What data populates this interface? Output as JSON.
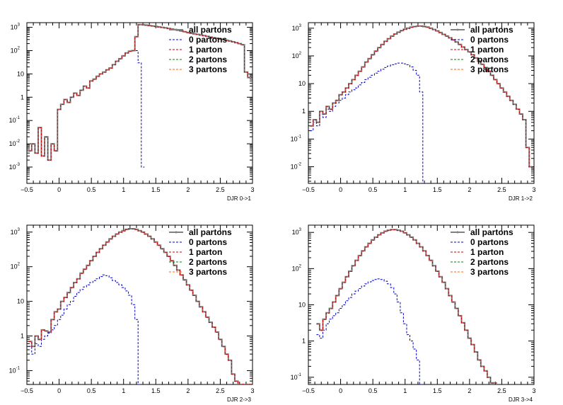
{
  "chart_data": [
    {
      "type": "line",
      "xlabel": "DJR 0->1",
      "xlim": [
        -0.5,
        3
      ],
      "ylim_log10": [
        -3.7,
        3.2
      ],
      "yscale": "log",
      "xticks": [
        "−0.5",
        "0",
        "0.5",
        "1",
        "1.5",
        "2",
        "2.5",
        "3"
      ],
      "yticks": [
        {
          "mant": "10",
          "exp": "-3",
          "log": -3
        },
        {
          "mant": "10",
          "exp": "-2",
          "log": -2
        },
        {
          "mant": "10",
          "exp": "-1",
          "log": -1
        },
        {
          "mant": "1",
          "exp": "",
          "log": 0
        },
        {
          "mant": "10",
          "exp": "",
          "log": 1
        },
        {
          "mant": "10",
          "exp": "2",
          "log": 2
        },
        {
          "mant": "10",
          "exp": "3",
          "log": 3
        }
      ],
      "legend": [
        "all partons",
        "0 partons",
        "1 parton",
        "2 partons",
        "3 partons"
      ],
      "colors": [
        "#808080",
        "#0000cc",
        "#cc0000",
        "#008000",
        "#ff6600"
      ],
      "series": [
        {
          "name": "all partons",
          "color": "#808080",
          "x": [
            -0.45,
            -0.4,
            -0.35,
            -0.3,
            -0.25,
            -0.2,
            -0.15,
            -0.1,
            -0.05,
            0.0,
            0.05,
            0.1,
            0.15,
            0.2,
            0.25,
            0.3,
            0.35,
            0.4,
            0.45,
            0.5,
            0.55,
            0.6,
            0.65,
            0.7,
            0.75,
            0.8,
            0.85,
            0.9,
            0.95,
            1.0,
            1.05,
            1.1,
            1.15,
            1.2,
            1.25,
            1.3,
            1.35,
            1.4,
            1.45,
            1.5,
            1.55,
            1.6,
            1.65,
            1.7,
            1.75,
            1.8,
            1.85,
            1.9,
            1.95,
            2.0,
            2.05,
            2.1,
            2.15,
            2.2,
            2.25,
            2.3,
            2.35,
            2.4,
            2.45,
            2.5,
            2.55,
            2.6,
            2.65,
            2.7,
            2.75,
            2.8,
            2.85,
            2.9,
            2.95
          ],
          "y": [
            0.005,
            0.01,
            0.004,
            0.05,
            0.003,
            0.02,
            0.002,
            0.01,
            0.005,
            0.3,
            0.5,
            0.8,
            0.6,
            1.0,
            1.5,
            1.2,
            2,
            3,
            2.5,
            5,
            6,
            8,
            10,
            12,
            15,
            18,
            25,
            35,
            45,
            60,
            80,
            95,
            100,
            400,
            1300,
            1300,
            1250,
            1200,
            1150,
            1100,
            1050,
            1000,
            950,
            900,
            850,
            800,
            750,
            700,
            650,
            600,
            560,
            530,
            500,
            470,
            440,
            410,
            380,
            360,
            340,
            320,
            300,
            280,
            260,
            240,
            220,
            200,
            180,
            12,
            7
          ]
        },
        {
          "name": "0 partons",
          "color": "#0000cc",
          "x": [
            -0.45,
            -0.4,
            -0.35,
            -0.3,
            -0.25,
            -0.2,
            -0.15,
            -0.1,
            -0.05,
            0.0,
            0.05,
            0.1,
            0.15,
            0.2,
            0.25,
            0.3,
            0.35,
            0.4,
            0.45,
            0.5,
            0.55,
            0.6,
            0.65,
            0.7,
            0.75,
            0.8,
            0.85,
            0.9,
            0.95,
            1.0,
            1.05,
            1.1,
            1.15,
            1.2,
            1.25,
            1.3
          ],
          "y": [
            0.005,
            0.01,
            0.004,
            0.05,
            0.003,
            0.02,
            0.002,
            0.01,
            0.005,
            0.3,
            0.5,
            0.8,
            0.6,
            1.0,
            1.5,
            1.2,
            2,
            3,
            2.5,
            5,
            6,
            8,
            10,
            12,
            15,
            18,
            25,
            35,
            45,
            60,
            80,
            95,
            100,
            100,
            30,
            0.001
          ]
        }
      ]
    },
    {
      "type": "line",
      "xlabel": "DJR 1->2",
      "xlim": [
        -0.5,
        3
      ],
      "ylim_log10": [
        -2.6,
        3.2
      ],
      "yscale": "log",
      "xticks": [
        "−0.5",
        "0",
        "0.5",
        "1",
        "1.5",
        "2",
        "2.5",
        "3"
      ],
      "yticks": [
        {
          "mant": "10",
          "exp": "-2",
          "log": -2
        },
        {
          "mant": "10",
          "exp": "-1",
          "log": -1
        },
        {
          "mant": "1",
          "exp": "",
          "log": 0
        },
        {
          "mant": "10",
          "exp": "",
          "log": 1
        },
        {
          "mant": "10",
          "exp": "2",
          "log": 2
        },
        {
          "mant": "10",
          "exp": "3",
          "log": 3
        }
      ],
      "legend": [
        "all partons",
        "0 partons",
        "1 parton",
        "2 partons",
        "3 partons"
      ],
      "colors": [
        "#808080",
        "#0000cc",
        "#cc0000",
        "#008000",
        "#ff6600"
      ],
      "series": [
        {
          "name": "all partons",
          "color": "#808080",
          "x": [
            -0.45,
            -0.4,
            -0.35,
            -0.3,
            -0.25,
            -0.2,
            -0.15,
            -0.1,
            -0.05,
            0.0,
            0.05,
            0.1,
            0.15,
            0.2,
            0.25,
            0.3,
            0.35,
            0.4,
            0.45,
            0.5,
            0.55,
            0.6,
            0.65,
            0.7,
            0.75,
            0.8,
            0.85,
            0.9,
            0.95,
            1.0,
            1.05,
            1.1,
            1.15,
            1.2,
            1.25,
            1.3,
            1.35,
            1.4,
            1.45,
            1.5,
            1.55,
            1.6,
            1.65,
            1.7,
            1.75,
            1.8,
            1.85,
            1.9,
            1.95,
            2.0,
            2.05,
            2.1,
            2.15,
            2.2,
            2.25,
            2.3,
            2.35,
            2.4,
            2.45,
            2.5,
            2.55,
            2.6,
            2.65,
            2.7,
            2.75,
            2.8,
            2.85,
            2.9,
            2.95
          ],
          "y": [
            0.3,
            0.5,
            0.4,
            1,
            0.8,
            1.5,
            1.2,
            2,
            2.5,
            4,
            5,
            7,
            10,
            14,
            20,
            28,
            40,
            60,
            80,
            110,
            150,
            200,
            260,
            340,
            420,
            520,
            620,
            720,
            820,
            920,
            1000,
            1100,
            1150,
            1200,
            1200,
            1150,
            1100,
            1000,
            900,
            800,
            700,
            600,
            520,
            450,
            380,
            320,
            260,
            210,
            170,
            140,
            110,
            85,
            65,
            50,
            38,
            28,
            20,
            14,
            10,
            7,
            5,
            3.5,
            2.5,
            1.8,
            1.2,
            0.8,
            0.5,
            0.05,
            0.01
          ]
        },
        {
          "name": "0 partons",
          "color": "#0000cc",
          "x": [
            -0.45,
            -0.4,
            -0.35,
            -0.3,
            -0.25,
            -0.2,
            -0.15,
            -0.1,
            -0.05,
            0.0,
            0.05,
            0.1,
            0.15,
            0.2,
            0.25,
            0.3,
            0.35,
            0.4,
            0.45,
            0.5,
            0.55,
            0.6,
            0.65,
            0.7,
            0.75,
            0.8,
            0.85,
            0.9,
            0.95,
            1.0,
            1.05,
            1.1,
            1.15,
            1.2,
            1.25,
            1.3
          ],
          "y": [
            0.2,
            0.4,
            0.3,
            0.8,
            0.6,
            1.2,
            1,
            1.5,
            2,
            2.5,
            3,
            4,
            5,
            6,
            7,
            9,
            11,
            14,
            17,
            20,
            24,
            28,
            33,
            38,
            43,
            48,
            52,
            55,
            55,
            52,
            48,
            40,
            30,
            20,
            5,
            0.001
          ]
        }
      ]
    },
    {
      "type": "line",
      "xlabel": "DJR 2->3",
      "xlim": [
        -0.5,
        3
      ],
      "ylim_log10": [
        -1.4,
        3.2
      ],
      "yscale": "log",
      "xticks": [
        "−0.5",
        "0",
        "0.5",
        "1",
        "1.5",
        "2",
        "2.5",
        "3"
      ],
      "yticks": [
        {
          "mant": "10",
          "exp": "-1",
          "log": -1
        },
        {
          "mant": "1",
          "exp": "",
          "log": 0
        },
        {
          "mant": "10",
          "exp": "",
          "log": 1
        },
        {
          "mant": "10",
          "exp": "2",
          "log": 2
        },
        {
          "mant": "10",
          "exp": "3",
          "log": 3
        }
      ],
      "legend": [
        "all partons",
        "0 partons",
        "1 parton",
        "2 partons",
        "3 partons"
      ],
      "colors": [
        "#808080",
        "#0000cc",
        "#cc0000",
        "#008000",
        "#ff6600"
      ],
      "series": [
        {
          "name": "all partons",
          "color": "#808080",
          "x": [
            -0.45,
            -0.4,
            -0.35,
            -0.3,
            -0.25,
            -0.2,
            -0.15,
            -0.1,
            -0.05,
            0.0,
            0.05,
            0.1,
            0.15,
            0.2,
            0.25,
            0.3,
            0.35,
            0.4,
            0.45,
            0.5,
            0.55,
            0.6,
            0.65,
            0.7,
            0.75,
            0.8,
            0.85,
            0.9,
            0.95,
            1.0,
            1.05,
            1.1,
            1.15,
            1.2,
            1.25,
            1.3,
            1.35,
            1.4,
            1.45,
            1.5,
            1.55,
            1.6,
            1.65,
            1.7,
            1.75,
            1.8,
            1.85,
            1.9,
            1.95,
            2.0,
            2.05,
            2.1,
            2.15,
            2.2,
            2.25,
            2.3,
            2.35,
            2.4,
            2.45,
            2.5,
            2.55,
            2.6,
            2.65,
            2.7,
            2.75,
            2.8,
            2.85,
            2.9,
            2.95
          ],
          "y": [
            0.7,
            0.5,
            1,
            0.8,
            1.5,
            1.4,
            1.3,
            3,
            5,
            6,
            10,
            13,
            18,
            25,
            35,
            45,
            65,
            85,
            110,
            150,
            200,
            260,
            330,
            420,
            520,
            640,
            760,
            880,
            1000,
            1100,
            1200,
            1250,
            1250,
            1200,
            1100,
            1000,
            880,
            760,
            640,
            520,
            420,
            330,
            260,
            200,
            150,
            110,
            80,
            58,
            42,
            30,
            21,
            15,
            10,
            7,
            5,
            3.5,
            2.5,
            1.8,
            1.3,
            0.8,
            0.5,
            0.3,
            0.2,
            0.08,
            0.05,
            0.04,
            0.04,
            0.04,
            0.04
          ]
        },
        {
          "name": "0 partons",
          "color": "#0000cc",
          "x": [
            -0.45,
            -0.4,
            -0.35,
            -0.3,
            -0.25,
            -0.2,
            -0.15,
            -0.1,
            -0.05,
            0.0,
            0.05,
            0.1,
            0.15,
            0.2,
            0.25,
            0.3,
            0.35,
            0.4,
            0.45,
            0.5,
            0.55,
            0.6,
            0.65,
            0.7,
            0.75,
            0.8,
            0.85,
            0.9,
            0.95,
            1.0,
            1.05,
            1.1,
            1.15,
            1.2,
            1.25
          ],
          "y": [
            0.5,
            0.3,
            0.6,
            0.5,
            0.8,
            1.0,
            1.2,
            1.5,
            2,
            3,
            4,
            6,
            8,
            10,
            14,
            18,
            22,
            26,
            30,
            35,
            40,
            45,
            52,
            58,
            55,
            48,
            40,
            35,
            30,
            25,
            20,
            15,
            8,
            3,
            0.001
          ]
        }
      ]
    },
    {
      "type": "line",
      "xlabel": "DJR 3->4",
      "xlim": [
        -0.5,
        3
      ],
      "ylim_log10": [
        -1.2,
        3.2
      ],
      "yscale": "log",
      "xticks": [
        "−0.5",
        "0",
        "0.5",
        "1",
        "1.5",
        "2",
        "2.5",
        "3"
      ],
      "yticks": [
        {
          "mant": "10",
          "exp": "-1",
          "log": -1
        },
        {
          "mant": "1",
          "exp": "",
          "log": 0
        },
        {
          "mant": "10",
          "exp": "",
          "log": 1
        },
        {
          "mant": "10",
          "exp": "2",
          "log": 2
        },
        {
          "mant": "10",
          "exp": "3",
          "log": 3
        }
      ],
      "legend": [
        "all partons",
        "0 partons",
        "1 parton",
        "2 partons",
        "3 partons"
      ],
      "colors": [
        "#808080",
        "#0000cc",
        "#cc0000",
        "#008000",
        "#ff6600"
      ],
      "series": [
        {
          "name": "all partons",
          "color": "#808080",
          "x": [
            -0.35,
            -0.3,
            -0.25,
            -0.2,
            -0.15,
            -0.1,
            -0.05,
            0.0,
            0.05,
            0.1,
            0.15,
            0.2,
            0.25,
            0.3,
            0.35,
            0.4,
            0.45,
            0.5,
            0.55,
            0.6,
            0.65,
            0.7,
            0.75,
            0.8,
            0.85,
            0.9,
            0.95,
            1.0,
            1.05,
            1.1,
            1.15,
            1.2,
            1.25,
            1.3,
            1.35,
            1.4,
            1.45,
            1.5,
            1.55,
            1.6,
            1.65,
            1.7,
            1.75,
            1.8,
            1.85,
            1.9,
            1.95,
            2.0,
            2.05,
            2.1,
            2.15,
            2.2,
            2.25,
            2.3,
            2.35,
            2.4
          ],
          "y": [
            3,
            2,
            4,
            6,
            8,
            12,
            18,
            28,
            42,
            60,
            85,
            120,
            170,
            230,
            310,
            400,
            500,
            620,
            740,
            860,
            980,
            1080,
            1150,
            1200,
            1200,
            1150,
            1080,
            980,
            860,
            740,
            620,
            500,
            400,
            310,
            230,
            170,
            120,
            85,
            60,
            42,
            28,
            18,
            12,
            8,
            5,
            3.2,
            2,
            1.2,
            0.8,
            0.5,
            0.3,
            0.2,
            0.15,
            0.1,
            0.07,
            0.07
          ]
        },
        {
          "name": "0 partons",
          "color": "#0000cc",
          "x": [
            -0.35,
            -0.3,
            -0.25,
            -0.2,
            -0.15,
            -0.1,
            -0.05,
            0.0,
            0.05,
            0.1,
            0.15,
            0.2,
            0.25,
            0.3,
            0.35,
            0.4,
            0.45,
            0.5,
            0.55,
            0.6,
            0.65,
            0.7,
            0.75,
            0.8,
            0.85,
            0.9,
            0.95,
            1.0,
            1.05,
            1.1,
            1.15,
            1.2,
            1.25
          ],
          "y": [
            1.5,
            1.2,
            2,
            3,
            4,
            5,
            6,
            8,
            10,
            13,
            16,
            20,
            24,
            28,
            33,
            38,
            43,
            47,
            50,
            52,
            50,
            45,
            38,
            30,
            20,
            12,
            6,
            3,
            1.5,
            1,
            0.6,
            0.3,
            0.001
          ]
        }
      ]
    }
  ]
}
